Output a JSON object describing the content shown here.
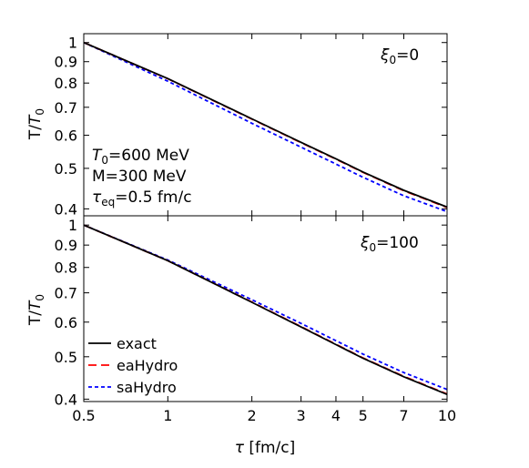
{
  "chart_data": [
    {
      "type": "line",
      "panel": "top",
      "annotation": "ξ0=0",
      "params": [
        "T0=600 MeV",
        "M=300 MeV",
        "τeq=0.5 fm/c"
      ],
      "ylabel": "T/T0",
      "xlabel": "",
      "xscale": "log",
      "yscale": "log",
      "xlim": [
        0.5,
        10
      ],
      "ylim": [
        0.385,
        1.05
      ],
      "xticks": [
        "0.5",
        "1",
        "2",
        "3",
        "4",
        "5",
        "7",
        "10"
      ],
      "yticks": [
        "0.4",
        "0.5",
        "0.6",
        "0.7",
        "0.8",
        "0.9",
        "1"
      ],
      "series": [
        {
          "name": "exact",
          "color": "#000000",
          "dash": "solid",
          "x": [
            0.5,
            1,
            2,
            3,
            4,
            5,
            7,
            10
          ],
          "y": [
            1.0,
            0.82,
            0.657,
            0.577,
            0.527,
            0.49,
            0.443,
            0.404
          ]
        },
        {
          "name": "eaHydro",
          "color": "#ff0000",
          "dash": "long",
          "x": [
            0.5,
            1,
            2,
            3,
            4,
            5,
            7,
            10
          ],
          "y": [
            1.0,
            0.819,
            0.656,
            0.576,
            0.526,
            0.489,
            0.442,
            0.403
          ]
        },
        {
          "name": "saHydro",
          "color": "#0000ff",
          "dash": "short",
          "x": [
            0.5,
            1,
            2,
            3,
            4,
            5,
            7,
            10
          ],
          "y": [
            1.0,
            0.808,
            0.641,
            0.562,
            0.512,
            0.476,
            0.43,
            0.394
          ]
        }
      ]
    },
    {
      "type": "line",
      "panel": "bottom",
      "annotation": "ξ0=100",
      "ylabel": "T/T0",
      "xlabel": "τ [fm/c]",
      "xscale": "log",
      "yscale": "log",
      "xlim": [
        0.5,
        10
      ],
      "ylim": [
        0.395,
        1.05
      ],
      "xticks": [
        "0.5",
        "1",
        "2",
        "3",
        "4",
        "5",
        "7",
        "10"
      ],
      "yticks": [
        "0.4",
        "0.5",
        "0.6",
        "0.7",
        "0.8",
        "0.9",
        "1"
      ],
      "legend": {
        "position": "bottom-left",
        "entries": [
          "exact",
          "eaHydro",
          "saHydro"
        ]
      },
      "series": [
        {
          "name": "exact",
          "color": "#000000",
          "dash": "solid",
          "x": [
            0.5,
            1,
            2,
            3,
            4,
            5,
            7,
            10
          ],
          "y": [
            1.0,
            0.829,
            0.666,
            0.585,
            0.533,
            0.496,
            0.45,
            0.41
          ]
        },
        {
          "name": "eaHydro",
          "color": "#ff0000",
          "dash": "long",
          "x": [
            0.5,
            1,
            2,
            3,
            4,
            5,
            7,
            10
          ],
          "y": [
            1.0,
            0.829,
            0.667,
            0.586,
            0.534,
            0.497,
            0.451,
            0.411
          ]
        },
        {
          "name": "saHydro",
          "color": "#0000ff",
          "dash": "short",
          "x": [
            0.5,
            1,
            2,
            3,
            4,
            5,
            7,
            10
          ],
          "y": [
            1.0,
            0.832,
            0.675,
            0.596,
            0.544,
            0.507,
            0.46,
            0.421
          ]
        }
      ]
    }
  ]
}
